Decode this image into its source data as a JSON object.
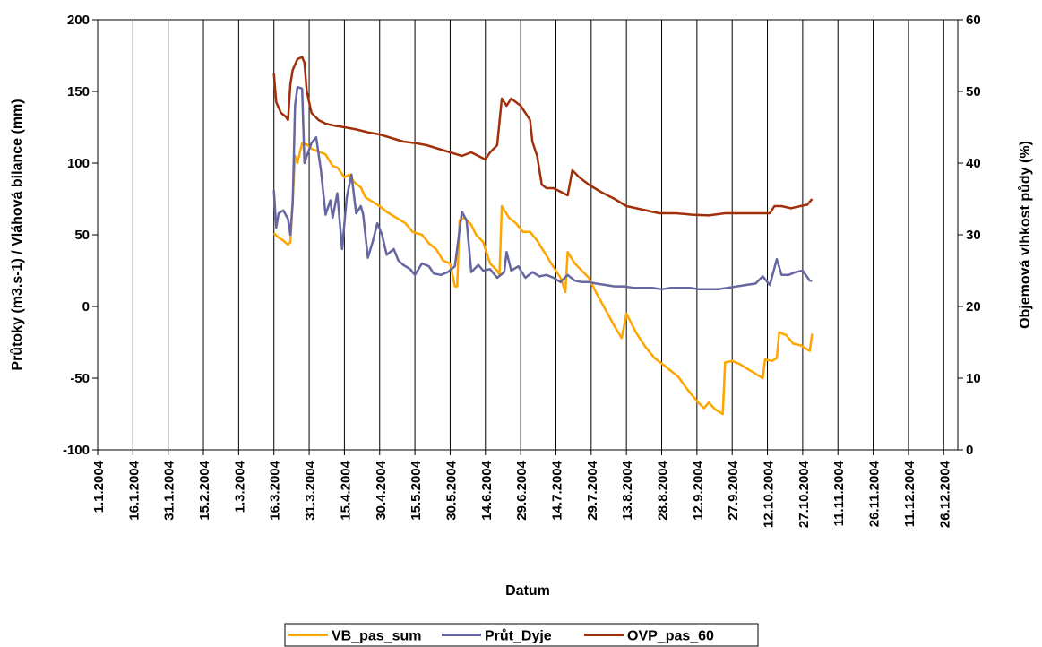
{
  "chart_data": {
    "type": "line",
    "xlabel": "Datum",
    "ylabel_left": "Průtoky (m3.s-1) /  Vláhová bilance (mm)",
    "ylabel_right": "Objemová vlhkost půdy (%)",
    "ylim_left": [
      -100,
      200
    ],
    "yticks_left": [
      "-100",
      "-50",
      "0",
      "50",
      "100",
      "150",
      "200"
    ],
    "ylim_right": [
      0,
      60
    ],
    "yticks_right": [
      "0",
      "10",
      "20",
      "30",
      "40",
      "50",
      "60"
    ],
    "x_range": [
      "2004-01-01",
      "2005-01-01"
    ],
    "x_ticks": [
      "1.1.2004",
      "16.1.2004",
      "31.1.2004",
      "15.2.2004",
      "1.3.2004",
      "16.3.2004",
      "31.3.2004",
      "15.4.2004",
      "30.4.2004",
      "15.5.2004",
      "30.5.2004",
      "14.6.2004",
      "29.6.2004",
      "14.7.2004",
      "29.7.2004",
      "13.8.2004",
      "28.8.2004",
      "12.9.2004",
      "27.9.2004",
      "12.10.2004",
      "27.10.2004",
      "11.11.2004",
      "26.11.2004",
      "11.12.2004",
      "26.12.2004"
    ],
    "grid": "vertical",
    "legend_position": "bottom",
    "series": [
      {
        "name": "VB_pas_sum",
        "color": "#FFA500",
        "axis": "left",
        "points": [
          [
            "2004-03-16",
            51
          ],
          [
            "2004-03-18",
            48
          ],
          [
            "2004-03-20",
            46
          ],
          [
            "2004-03-22",
            43
          ],
          [
            "2004-03-23",
            45
          ],
          [
            "2004-03-25",
            105
          ],
          [
            "2004-03-26",
            100
          ],
          [
            "2004-03-28",
            114
          ],
          [
            "2004-03-30",
            113
          ],
          [
            "2004-04-01",
            110
          ],
          [
            "2004-04-04",
            108
          ],
          [
            "2004-04-07",
            106
          ],
          [
            "2004-04-10",
            98
          ],
          [
            "2004-04-12",
            97
          ],
          [
            "2004-04-15",
            90
          ],
          [
            "2004-04-17",
            92
          ],
          [
            "2004-04-19",
            87
          ],
          [
            "2004-04-22",
            83
          ],
          [
            "2004-04-24",
            76
          ],
          [
            "2004-04-27",
            73
          ],
          [
            "2004-04-30",
            70
          ],
          [
            "2004-05-03",
            66
          ],
          [
            "2004-05-07",
            62
          ],
          [
            "2004-05-11",
            58
          ],
          [
            "2004-05-14",
            52
          ],
          [
            "2004-05-18",
            50
          ],
          [
            "2004-05-21",
            44
          ],
          [
            "2004-05-24",
            40
          ],
          [
            "2004-05-27",
            32
          ],
          [
            "2004-05-30",
            30
          ],
          [
            "2004-06-01",
            14
          ],
          [
            "2004-06-02",
            14
          ],
          [
            "2004-06-03",
            60
          ],
          [
            "2004-06-05",
            62
          ],
          [
            "2004-06-08",
            57
          ],
          [
            "2004-06-10",
            50
          ],
          [
            "2004-06-13",
            45
          ],
          [
            "2004-06-16",
            30
          ],
          [
            "2004-06-19",
            25
          ],
          [
            "2004-06-20",
            22
          ],
          [
            "2004-06-21",
            70
          ],
          [
            "2004-06-24",
            62
          ],
          [
            "2004-06-27",
            58
          ],
          [
            "2004-06-30",
            52
          ],
          [
            "2004-07-03",
            52
          ],
          [
            "2004-07-06",
            46
          ],
          [
            "2004-07-09",
            38
          ],
          [
            "2004-07-12",
            30
          ],
          [
            "2004-07-16",
            20
          ],
          [
            "2004-07-18",
            10
          ],
          [
            "2004-07-19",
            38
          ],
          [
            "2004-07-22",
            30
          ],
          [
            "2004-07-25",
            25
          ],
          [
            "2004-07-28",
            20
          ],
          [
            "2004-07-31",
            10
          ],
          [
            "2004-08-04",
            -2
          ],
          [
            "2004-08-08",
            -14
          ],
          [
            "2004-08-11",
            -22
          ],
          [
            "2004-08-13",
            -5
          ],
          [
            "2004-08-17",
            -18
          ],
          [
            "2004-08-21",
            -28
          ],
          [
            "2004-08-25",
            -36
          ],
          [
            "2004-08-29",
            -41
          ],
          [
            "2004-09-01",
            -45
          ],
          [
            "2004-09-04",
            -49
          ],
          [
            "2004-09-08",
            -58
          ],
          [
            "2004-09-12",
            -66
          ],
          [
            "2004-09-15",
            -71
          ],
          [
            "2004-09-17",
            -67
          ],
          [
            "2004-09-20",
            -72
          ],
          [
            "2004-09-23",
            -75
          ],
          [
            "2004-09-24",
            -39
          ],
          [
            "2004-09-27",
            -38
          ],
          [
            "2004-09-30",
            -40
          ],
          [
            "2004-10-04",
            -44
          ],
          [
            "2004-10-08",
            -48
          ],
          [
            "2004-10-10",
            -50
          ],
          [
            "2004-10-11",
            -37
          ],
          [
            "2004-10-14",
            -38
          ],
          [
            "2004-10-16",
            -36
          ],
          [
            "2004-10-17",
            -18
          ],
          [
            "2004-10-20",
            -20
          ],
          [
            "2004-10-23",
            -26
          ],
          [
            "2004-10-26",
            -27
          ],
          [
            "2004-10-29",
            -30
          ],
          [
            "2004-10-30",
            -31
          ],
          [
            "2004-10-31",
            -19
          ]
        ]
      },
      {
        "name": "Průt_Dyje",
        "color": "#6666A0",
        "axis": "left",
        "points": [
          [
            "2004-03-16",
            81
          ],
          [
            "2004-03-17",
            55
          ],
          [
            "2004-03-18",
            65
          ],
          [
            "2004-03-20",
            67
          ],
          [
            "2004-03-22",
            61
          ],
          [
            "2004-03-23",
            50
          ],
          [
            "2004-03-24",
            72
          ],
          [
            "2004-03-25",
            140
          ],
          [
            "2004-03-26",
            153
          ],
          [
            "2004-03-28",
            152
          ],
          [
            "2004-03-29",
            100
          ],
          [
            "2004-03-30",
            105
          ],
          [
            "2004-04-01",
            114
          ],
          [
            "2004-04-03",
            118
          ],
          [
            "2004-04-05",
            95
          ],
          [
            "2004-04-07",
            64
          ],
          [
            "2004-04-09",
            74
          ],
          [
            "2004-04-10",
            62
          ],
          [
            "2004-04-12",
            79
          ],
          [
            "2004-04-14",
            40
          ],
          [
            "2004-04-16",
            76
          ],
          [
            "2004-04-18",
            92
          ],
          [
            "2004-04-20",
            65
          ],
          [
            "2004-04-22",
            70
          ],
          [
            "2004-04-23",
            64
          ],
          [
            "2004-04-25",
            34
          ],
          [
            "2004-04-27",
            45
          ],
          [
            "2004-04-29",
            58
          ],
          [
            "2004-05-01",
            50
          ],
          [
            "2004-05-03",
            36
          ],
          [
            "2004-05-06",
            40
          ],
          [
            "2004-05-08",
            32
          ],
          [
            "2004-05-10",
            29
          ],
          [
            "2004-05-13",
            26
          ],
          [
            "2004-05-15",
            22
          ],
          [
            "2004-05-18",
            30
          ],
          [
            "2004-05-21",
            28
          ],
          [
            "2004-05-23",
            23
          ],
          [
            "2004-05-26",
            22
          ],
          [
            "2004-05-29",
            24
          ],
          [
            "2004-06-01",
            28
          ],
          [
            "2004-06-04",
            66
          ],
          [
            "2004-06-06",
            60
          ],
          [
            "2004-06-08",
            24
          ],
          [
            "2004-06-11",
            29
          ],
          [
            "2004-06-13",
            25
          ],
          [
            "2004-06-16",
            26
          ],
          [
            "2004-06-19",
            20
          ],
          [
            "2004-06-22",
            24
          ],
          [
            "2004-06-23",
            38
          ],
          [
            "2004-06-25",
            25
          ],
          [
            "2004-06-28",
            28
          ],
          [
            "2004-07-01",
            20
          ],
          [
            "2004-07-04",
            24
          ],
          [
            "2004-07-07",
            21
          ],
          [
            "2004-07-10",
            22
          ],
          [
            "2004-07-13",
            20
          ],
          [
            "2004-07-16",
            17
          ],
          [
            "2004-07-19",
            22
          ],
          [
            "2004-07-22",
            18
          ],
          [
            "2004-07-25",
            17
          ],
          [
            "2004-07-28",
            17
          ],
          [
            "2004-07-31",
            16
          ],
          [
            "2004-08-04",
            15
          ],
          [
            "2004-08-08",
            14
          ],
          [
            "2004-08-12",
            14
          ],
          [
            "2004-08-16",
            13
          ],
          [
            "2004-08-20",
            13
          ],
          [
            "2004-08-24",
            13
          ],
          [
            "2004-08-28",
            12
          ],
          [
            "2004-09-01",
            13
          ],
          [
            "2004-09-05",
            13
          ],
          [
            "2004-09-09",
            13
          ],
          [
            "2004-09-13",
            12
          ],
          [
            "2004-09-17",
            12
          ],
          [
            "2004-09-21",
            12
          ],
          [
            "2004-09-25",
            13
          ],
          [
            "2004-09-29",
            14
          ],
          [
            "2004-10-03",
            15
          ],
          [
            "2004-10-07",
            16
          ],
          [
            "2004-10-10",
            21
          ],
          [
            "2004-10-13",
            15
          ],
          [
            "2004-10-16",
            33
          ],
          [
            "2004-10-18",
            22
          ],
          [
            "2004-10-21",
            22
          ],
          [
            "2004-10-24",
            24
          ],
          [
            "2004-10-27",
            25
          ],
          [
            "2004-10-30",
            18
          ],
          [
            "2004-10-31",
            18
          ]
        ]
      },
      {
        "name": "OVP_pas_60",
        "color": "#A0300A",
        "axis": "right",
        "points": [
          [
            "2004-03-16",
            52.5
          ],
          [
            "2004-03-17",
            48.5
          ],
          [
            "2004-03-19",
            47
          ],
          [
            "2004-03-21",
            46.5
          ],
          [
            "2004-03-22",
            46
          ],
          [
            "2004-03-23",
            51
          ],
          [
            "2004-03-24",
            53
          ],
          [
            "2004-03-26",
            54.5
          ],
          [
            "2004-03-28",
            54.8
          ],
          [
            "2004-03-29",
            54
          ],
          [
            "2004-03-30",
            50
          ],
          [
            "2004-04-01",
            47
          ],
          [
            "2004-04-04",
            46
          ],
          [
            "2004-04-07",
            45.5
          ],
          [
            "2004-04-11",
            45.2
          ],
          [
            "2004-04-15",
            45
          ],
          [
            "2004-04-20",
            44.7
          ],
          [
            "2004-04-25",
            44.3
          ],
          [
            "2004-04-30",
            44
          ],
          [
            "2004-05-05",
            43.5
          ],
          [
            "2004-05-10",
            43
          ],
          [
            "2004-05-15",
            42.8
          ],
          [
            "2004-05-20",
            42.5
          ],
          [
            "2004-05-25",
            42
          ],
          [
            "2004-05-30",
            41.5
          ],
          [
            "2004-06-04",
            41
          ],
          [
            "2004-06-08",
            41.5
          ],
          [
            "2004-06-11",
            41
          ],
          [
            "2004-06-14",
            40.5
          ],
          [
            "2004-06-16",
            41.5
          ],
          [
            "2004-06-19",
            42.5
          ],
          [
            "2004-06-21",
            49
          ],
          [
            "2004-06-23",
            48
          ],
          [
            "2004-06-25",
            49
          ],
          [
            "2004-06-27",
            48.5
          ],
          [
            "2004-06-29",
            48
          ],
          [
            "2004-07-01",
            47
          ],
          [
            "2004-07-03",
            46
          ],
          [
            "2004-07-04",
            43
          ],
          [
            "2004-07-06",
            41
          ],
          [
            "2004-07-08",
            37
          ],
          [
            "2004-07-10",
            36.5
          ],
          [
            "2004-07-13",
            36.5
          ],
          [
            "2004-07-16",
            36
          ],
          [
            "2004-07-19",
            35.5
          ],
          [
            "2004-07-21",
            39
          ],
          [
            "2004-07-24",
            38
          ],
          [
            "2004-07-28",
            37
          ],
          [
            "2004-08-02",
            36
          ],
          [
            "2004-08-08",
            35
          ],
          [
            "2004-08-13",
            34
          ],
          [
            "2004-08-20",
            33.5
          ],
          [
            "2004-08-27",
            33
          ],
          [
            "2004-09-03",
            33
          ],
          [
            "2004-09-10",
            32.8
          ],
          [
            "2004-09-17",
            32.7
          ],
          [
            "2004-09-24",
            33
          ],
          [
            "2004-10-01",
            33
          ],
          [
            "2004-10-08",
            33
          ],
          [
            "2004-10-13",
            33
          ],
          [
            "2004-10-15",
            34
          ],
          [
            "2004-10-18",
            34
          ],
          [
            "2004-10-22",
            33.7
          ],
          [
            "2004-10-26",
            34
          ],
          [
            "2004-10-29",
            34.2
          ],
          [
            "2004-10-31",
            35
          ]
        ]
      }
    ]
  }
}
